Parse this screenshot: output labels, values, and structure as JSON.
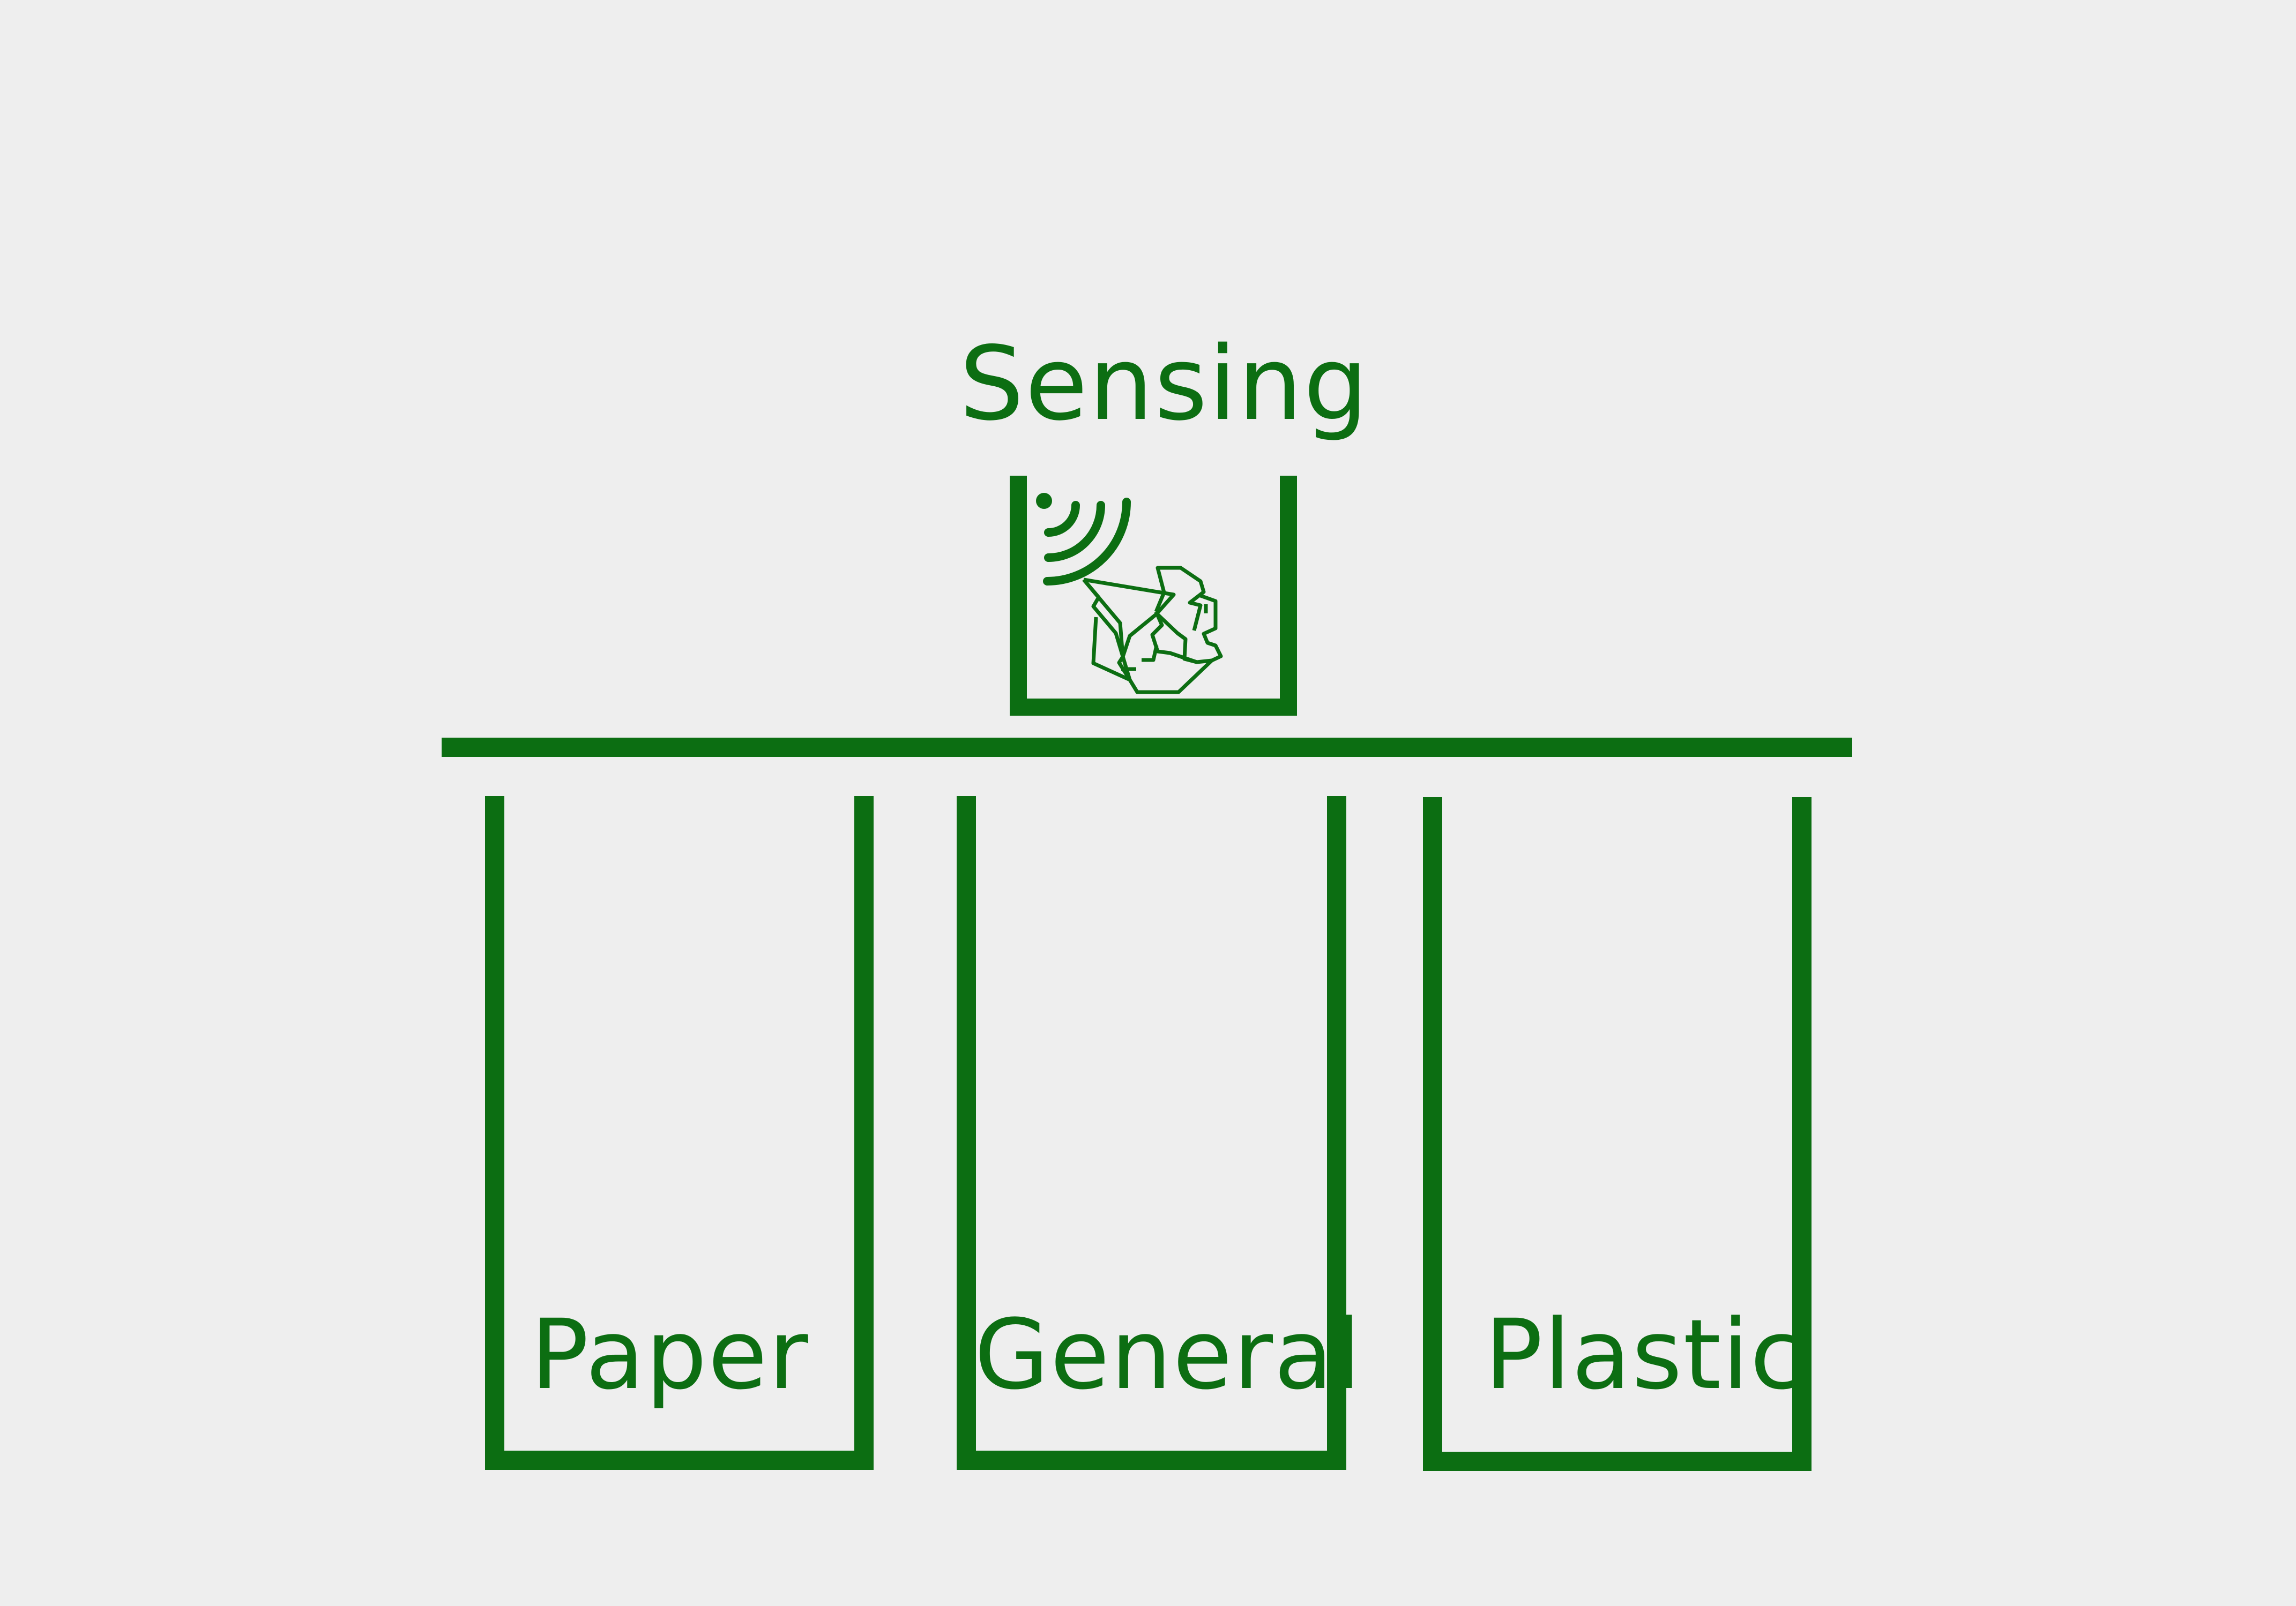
{
  "diagram": {
    "sensing_label": "Sensing",
    "bins": [
      {
        "label": "Paper"
      },
      {
        "label": "General"
      },
      {
        "label": "Plastic"
      }
    ],
    "icons": {
      "sensor": "wireless-signal-icon",
      "item": "crumpled-trash-icon"
    },
    "colors": {
      "stroke": "#0c6e12",
      "background": "#eeeeee"
    }
  }
}
